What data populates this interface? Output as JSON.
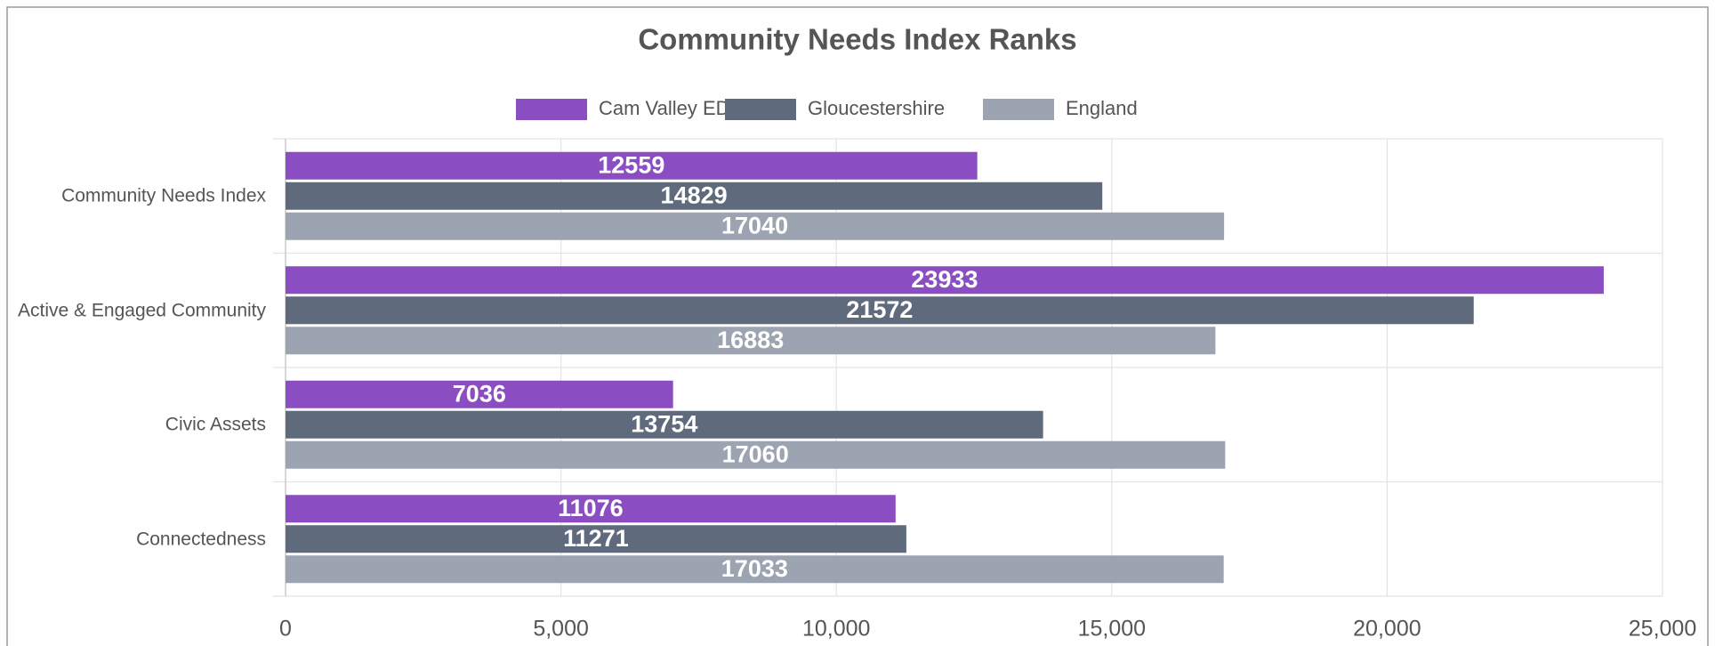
{
  "chart_data": {
    "type": "bar",
    "orientation": "horizontal",
    "title": "Community Needs Index Ranks",
    "categories": [
      "Community Needs Index",
      "Active & Engaged Community",
      "Civic Assets",
      "Connectedness"
    ],
    "series": [
      {
        "name": "Cam Valley ED",
        "color": "#8b4ec2",
        "values": [
          12559,
          23933,
          7036,
          11076
        ]
      },
      {
        "name": "Gloucestershire",
        "color": "#5f6b7c",
        "values": [
          14829,
          21572,
          13754,
          11271
        ]
      },
      {
        "name": "England",
        "color": "#9da4b1",
        "values": [
          17040,
          16883,
          17060,
          17033
        ]
      }
    ],
    "xlim": [
      0,
      25000
    ],
    "xticks": [
      0,
      {
        "value": 5000,
        "label": "5,000"
      },
      {
        "value": 10000,
        "label": "10,000"
      },
      {
        "value": 15000,
        "label": "15,000"
      },
      {
        "value": 20000,
        "label": "20,000"
      },
      {
        "value": 25000,
        "label": "25,000"
      }
    ],
    "grid": true,
    "legend": "top"
  }
}
